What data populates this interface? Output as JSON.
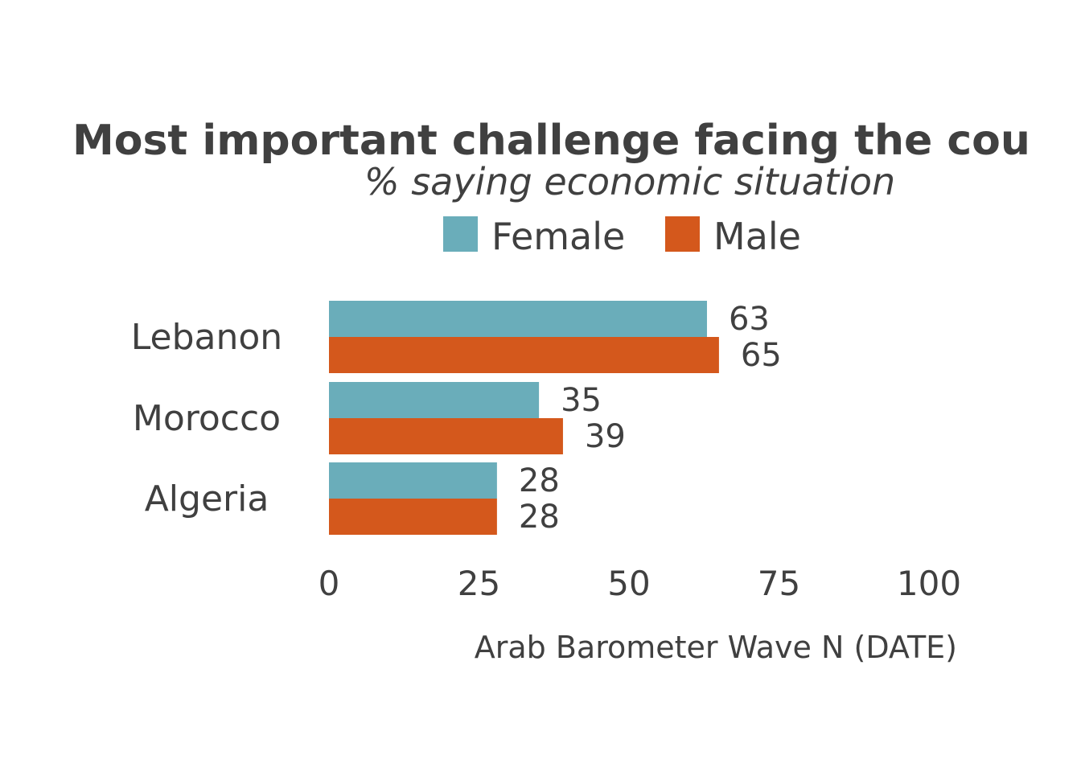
{
  "chart_data": {
    "type": "bar",
    "orientation": "horizontal",
    "title": "Most important challenge facing the cou",
    "subtitle": "% saying economic situation",
    "caption": "Arab Barometer Wave N (DATE)",
    "categories": [
      "Lebanon",
      "Morocco",
      "Algeria"
    ],
    "series": [
      {
        "name": "Female",
        "color": "#6aadba",
        "values": [
          63,
          35,
          28
        ]
      },
      {
        "name": "Male",
        "color": "#d4581c",
        "values": [
          65,
          39,
          28
        ]
      }
    ],
    "xlim": [
      0,
      100
    ],
    "x_ticks": [
      "0",
      "25",
      "50",
      "75",
      "100"
    ],
    "grid": false,
    "legend_position": "top"
  }
}
